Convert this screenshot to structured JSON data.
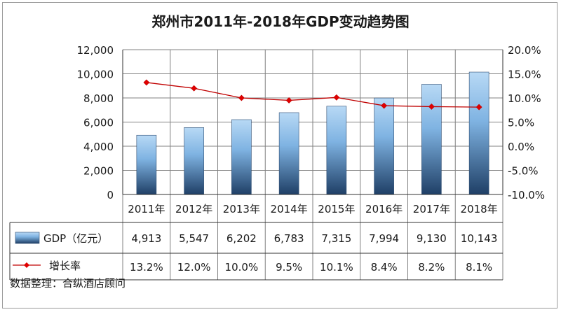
{
  "chart_data": {
    "type": "bar",
    "title": "郑州市2011年-2018年GDP变动趋势图",
    "categories": [
      "2011年",
      "2012年",
      "2013年",
      "2014年",
      "2015年",
      "2016年",
      "2017年",
      "2018年"
    ],
    "series": [
      {
        "name": "GDP（亿元）",
        "type": "bar",
        "axis": "left",
        "values": [
          4913,
          5547,
          6202,
          6783,
          7315,
          7994,
          9130,
          10143
        ],
        "labels": [
          "4,913",
          "5,547",
          "6,202",
          "6,783",
          "7,315",
          "7,994",
          "9,130",
          "10,143"
        ]
      },
      {
        "name": "增长率",
        "type": "line",
        "axis": "right",
        "values": [
          13.2,
          12.0,
          10.0,
          9.5,
          10.1,
          8.4,
          8.2,
          8.1
        ],
        "labels": [
          "13.2%",
          "12.0%",
          "10.0%",
          "9.5%",
          "10.1%",
          "8.4%",
          "8.2%",
          "8.1%"
        ]
      }
    ],
    "ylim": [
      0,
      12000
    ],
    "y_ticks": [
      "0",
      "2,000",
      "4,000",
      "6,000",
      "8,000",
      "10,000",
      "12,000"
    ],
    "y2lim": [
      -10,
      20
    ],
    "y2_ticks": [
      "-10.0%",
      "-5.0%",
      "0.0%",
      "5.0%",
      "10.0%",
      "15.0%",
      "20.0%"
    ],
    "grid": true,
    "legend": "data-table",
    "colors": {
      "bar_light": "#b8d9f5",
      "bar_mid": "#7fb3e2",
      "bar_dark": "#1f3f66",
      "line": "#c00000",
      "marker": "#e00000",
      "grid": "#808080"
    }
  },
  "source_note": "数据整理：合纵酒店顾问"
}
